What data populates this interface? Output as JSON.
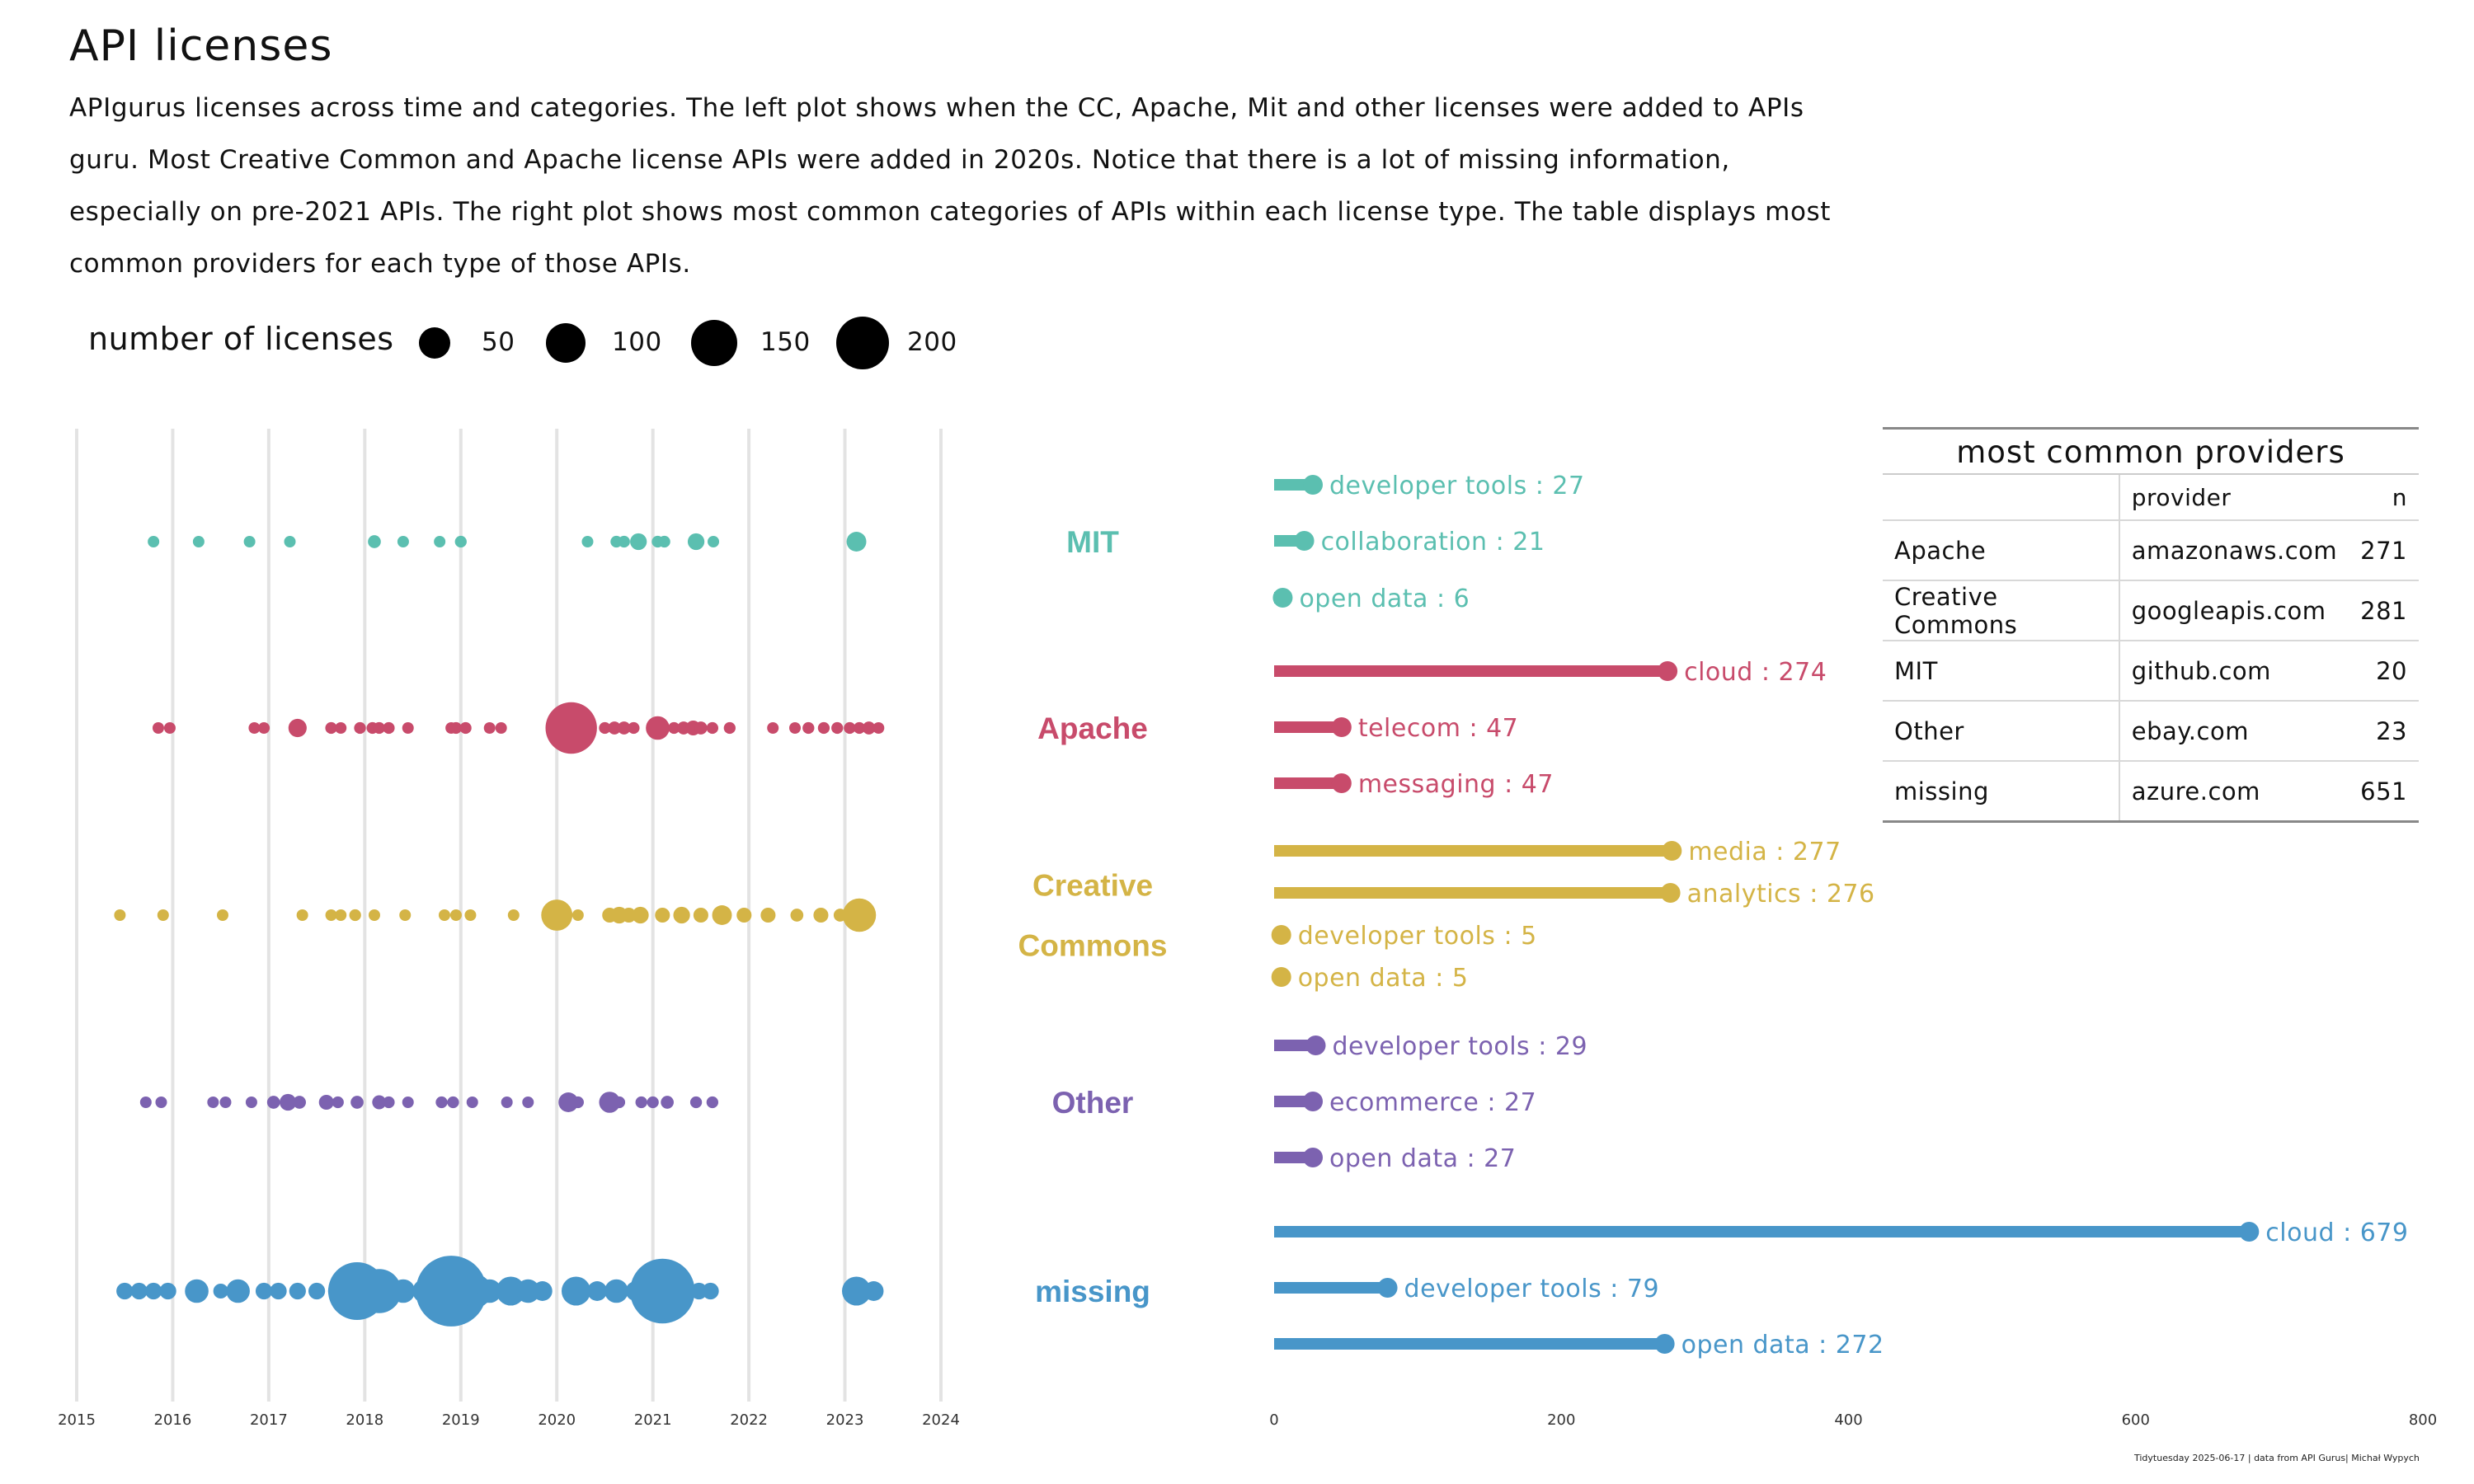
{
  "title": "API licenses",
  "subtitle": "APIgurus licenses across time and categories. The left plot shows when the CC, Apache, Mit and other licenses were added to APIs guru. Most Creative Common and Apache license APIs were added in 2020s. Notice that there is a lot of missing information, especially on pre-2021 APIs. The right plot shows most common categories of APIs within each license type. The table displays most common providers for each type of those APIs.",
  "legend": {
    "title": "number of licenses",
    "items": [
      {
        "label": "50",
        "size": 50
      },
      {
        "label": "100",
        "size": 100
      },
      {
        "label": "150",
        "size": 150
      },
      {
        "label": "200",
        "size": 200
      }
    ]
  },
  "colors": {
    "MIT": "#5bbfb0",
    "Apache": "#c84b6b",
    "Creative Commons": "#d4b446",
    "Other": "#7c62b0",
    "missing": "#4896c9"
  },
  "license_labels": [
    {
      "key": "MIT",
      "lines": [
        "MIT"
      ]
    },
    {
      "key": "Apache",
      "lines": [
        "Apache"
      ]
    },
    {
      "key": "Creative Commons",
      "lines": [
        "Creative",
        "Commons"
      ]
    },
    {
      "key": "Other",
      "lines": [
        "Other"
      ]
    },
    {
      "key": "missing",
      "lines": [
        "missing"
      ]
    }
  ],
  "chart_data": [
    {
      "type": "scatter",
      "description_of_encoding": "bubble timeline: x = year added, row = license, bubble size = number of licenses",
      "x_ticks": [
        "2015",
        "2016",
        "2017",
        "2018",
        "2019",
        "2020",
        "2021",
        "2022",
        "2023",
        "2024"
      ],
      "xlim": [
        2015,
        2024
      ],
      "grid": true,
      "series": [
        {
          "name": "MIT",
          "points": [
            [
              2015.8,
              3
            ],
            [
              2016.27,
              3
            ],
            [
              2016.8,
              3
            ],
            [
              2017.22,
              3
            ],
            [
              2018.1,
              6
            ],
            [
              2018.4,
              3
            ],
            [
              2018.78,
              4
            ],
            [
              2019.0,
              5
            ],
            [
              2020.32,
              3
            ],
            [
              2020.62,
              5
            ],
            [
              2020.7,
              5
            ],
            [
              2020.85,
              10
            ],
            [
              2021.05,
              5
            ],
            [
              2021.12,
              5
            ],
            [
              2021.45,
              10
            ],
            [
              2021.63,
              4
            ],
            [
              2023.12,
              14
            ]
          ]
        },
        {
          "name": "Apache",
          "points": [
            [
              2015.85,
              4
            ],
            [
              2015.97,
              4
            ],
            [
              2016.85,
              4
            ],
            [
              2016.95,
              4
            ],
            [
              2017.3,
              12
            ],
            [
              2017.65,
              5
            ],
            [
              2017.75,
              4
            ],
            [
              2017.95,
              5
            ],
            [
              2018.08,
              5
            ],
            [
              2018.15,
              5
            ],
            [
              2018.25,
              5
            ],
            [
              2018.45,
              4
            ],
            [
              2018.9,
              4
            ],
            [
              2018.95,
              5
            ],
            [
              2019.05,
              5
            ],
            [
              2019.3,
              4
            ],
            [
              2019.42,
              4
            ],
            [
              2020.15,
              95
            ],
            [
              2020.5,
              5
            ],
            [
              2020.6,
              6
            ],
            [
              2020.7,
              6
            ],
            [
              2020.8,
              5
            ],
            [
              2021.05,
              20
            ],
            [
              2021.22,
              5
            ],
            [
              2021.32,
              6
            ],
            [
              2021.42,
              8
            ],
            [
              2021.5,
              6
            ],
            [
              2021.62,
              5
            ],
            [
              2021.8,
              5
            ],
            [
              2022.25,
              4
            ],
            [
              2022.48,
              4
            ],
            [
              2022.62,
              5
            ],
            [
              2022.78,
              5
            ],
            [
              2022.92,
              5
            ],
            [
              2023.05,
              5
            ],
            [
              2023.15,
              5
            ],
            [
              2023.25,
              6
            ],
            [
              2023.35,
              4
            ]
          ]
        },
        {
          "name": "Creative Commons",
          "points": [
            [
              2015.45,
              3
            ],
            [
              2015.9,
              3
            ],
            [
              2016.52,
              3
            ],
            [
              2017.35,
              3
            ],
            [
              2017.65,
              4
            ],
            [
              2017.75,
              4
            ],
            [
              2017.9,
              5
            ],
            [
              2018.1,
              4
            ],
            [
              2018.42,
              3
            ],
            [
              2018.83,
              3
            ],
            [
              2018.95,
              4
            ],
            [
              2019.1,
              3
            ],
            [
              2019.55,
              3
            ],
            [
              2020.0,
              35
            ],
            [
              2020.22,
              4
            ],
            [
              2020.55,
              8
            ],
            [
              2020.65,
              10
            ],
            [
              2020.75,
              8
            ],
            [
              2020.87,
              10
            ],
            [
              2021.1,
              8
            ],
            [
              2021.3,
              10
            ],
            [
              2021.5,
              8
            ],
            [
              2021.72,
              14
            ],
            [
              2021.95,
              8
            ],
            [
              2022.2,
              8
            ],
            [
              2022.5,
              6
            ],
            [
              2022.75,
              8
            ],
            [
              2022.95,
              6
            ],
            [
              2023.15,
              40
            ]
          ]
        },
        {
          "name": "Other",
          "points": [
            [
              2015.72,
              4
            ],
            [
              2015.88,
              4
            ],
            [
              2016.42,
              4
            ],
            [
              2016.55,
              4
            ],
            [
              2016.82,
              3
            ],
            [
              2017.05,
              6
            ],
            [
              2017.2,
              10
            ],
            [
              2017.32,
              6
            ],
            [
              2017.6,
              8
            ],
            [
              2017.72,
              5
            ],
            [
              2017.92,
              6
            ],
            [
              2018.15,
              7
            ],
            [
              2018.25,
              5
            ],
            [
              2018.45,
              3
            ],
            [
              2018.8,
              5
            ],
            [
              2018.92,
              5
            ],
            [
              2019.12,
              3
            ],
            [
              2019.48,
              3
            ],
            [
              2019.7,
              3
            ],
            [
              2020.12,
              14
            ],
            [
              2020.22,
              5
            ],
            [
              2020.55,
              16
            ],
            [
              2020.65,
              5
            ],
            [
              2020.88,
              5
            ],
            [
              2021.0,
              5
            ],
            [
              2021.15,
              6
            ],
            [
              2021.45,
              5
            ],
            [
              2021.62,
              5
            ]
          ]
        },
        {
          "name": "missing",
          "points": [
            [
              2015.5,
              10
            ],
            [
              2015.65,
              10
            ],
            [
              2015.8,
              10
            ],
            [
              2015.95,
              10
            ],
            [
              2016.25,
              20
            ],
            [
              2016.5,
              8
            ],
            [
              2016.68,
              20
            ],
            [
              2016.95,
              10
            ],
            [
              2017.1,
              10
            ],
            [
              2017.3,
              10
            ],
            [
              2017.5,
              10
            ],
            [
              2017.72,
              14
            ],
            [
              2017.92,
              120
            ],
            [
              2018.15,
              70
            ],
            [
              2018.4,
              20
            ],
            [
              2018.62,
              20
            ],
            [
              2018.9,
              180
            ],
            [
              2019.15,
              40
            ],
            [
              2019.3,
              20
            ],
            [
              2019.52,
              30
            ],
            [
              2019.7,
              20
            ],
            [
              2019.85,
              14
            ],
            [
              2020.2,
              30
            ],
            [
              2020.42,
              14
            ],
            [
              2020.62,
              20
            ],
            [
              2020.82,
              14
            ],
            [
              2021.1,
              150
            ],
            [
              2021.32,
              20
            ],
            [
              2021.48,
              10
            ],
            [
              2021.6,
              10
            ],
            [
              2023.12,
              30
            ],
            [
              2023.3,
              14
            ]
          ]
        }
      ]
    },
    {
      "type": "bar",
      "description_of_encoding": "lollipop bars of top categories per license",
      "x_ticks": [
        "0",
        "200",
        "400",
        "600",
        "800"
      ],
      "xlim": [
        0,
        800
      ],
      "series": [
        {
          "name": "MIT",
          "bars": [
            {
              "category": "developer tools",
              "value": 27,
              "label": "developer tools : 27"
            },
            {
              "category": "collaboration",
              "value": 21,
              "label": "collaboration : 21"
            },
            {
              "category": "open data",
              "value": 6,
              "label": "open data : 6"
            }
          ]
        },
        {
          "name": "Apache",
          "bars": [
            {
              "category": "cloud",
              "value": 274,
              "label": "cloud : 274"
            },
            {
              "category": "telecom",
              "value": 47,
              "label": "telecom : 47"
            },
            {
              "category": "messaging",
              "value": 47,
              "label": "messaging : 47"
            }
          ]
        },
        {
          "name": "Creative Commons",
          "bars": [
            {
              "category": "media",
              "value": 277,
              "label": "media : 277"
            },
            {
              "category": "analytics",
              "value": 276,
              "label": "analytics : 276"
            },
            {
              "category": "developer tools",
              "value": 5,
              "label": "developer tools : 5"
            },
            {
              "category": "open data",
              "value": 5,
              "label": "open data : 5"
            }
          ]
        },
        {
          "name": "Other",
          "bars": [
            {
              "category": "developer tools",
              "value": 29,
              "label": "developer tools : 29"
            },
            {
              "category": "ecommerce",
              "value": 27,
              "label": "ecommerce : 27"
            },
            {
              "category": "open data",
              "value": 27,
              "label": "open data : 27"
            }
          ]
        },
        {
          "name": "missing",
          "bars": [
            {
              "category": "cloud",
              "value": 679,
              "label": "cloud : 679"
            },
            {
              "category": "developer tools",
              "value": 79,
              "label": "developer tools : 79"
            },
            {
              "category": "open data",
              "value": 272,
              "label": "open data : 272"
            }
          ]
        }
      ]
    },
    {
      "type": "table",
      "title": "most common providers",
      "columns": [
        "",
        "provider",
        "n"
      ],
      "rows": [
        [
          "Apache",
          "amazonaws.com",
          "271"
        ],
        [
          "Creative Commons",
          "googleapis.com",
          "281"
        ],
        [
          "MIT",
          "github.com",
          "20"
        ],
        [
          "Other",
          "ebay.com",
          "23"
        ],
        [
          "missing",
          "azure.com",
          "651"
        ]
      ]
    }
  ],
  "caption": "Tidytuesday 2025-06-17 | data from API Gurus| Michał Wypych"
}
